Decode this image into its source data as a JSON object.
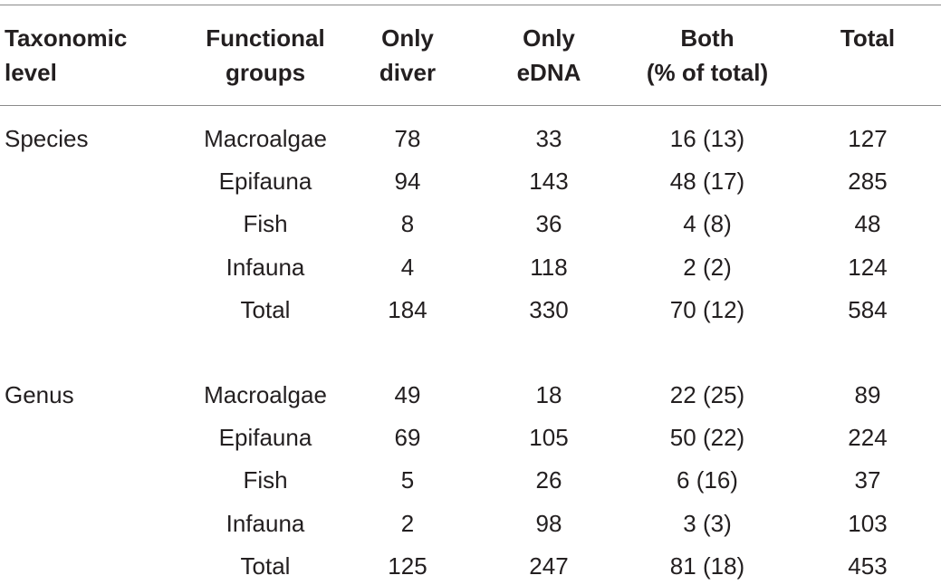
{
  "table": {
    "header": [
      [
        "Taxonomic",
        "level"
      ],
      [
        "Functional",
        "groups"
      ],
      [
        "Only",
        "diver"
      ],
      [
        "Only",
        "eDNA"
      ],
      [
        "Both",
        "(% of total)"
      ],
      [
        "Total"
      ]
    ],
    "groups": [
      {
        "level": "Species",
        "rows": [
          [
            "Macroalgae",
            78,
            33,
            "16 (13)",
            127
          ],
          [
            "Epifauna",
            94,
            143,
            "48 (17)",
            285
          ],
          [
            "Fish",
            8,
            36,
            "4 (8)",
            48
          ],
          [
            "Infauna",
            4,
            118,
            "2 (2)",
            124
          ],
          [
            "Total",
            184,
            330,
            "70 (12)",
            584
          ]
        ]
      },
      {
        "level": "Genus",
        "rows": [
          [
            "Macroalgae",
            49,
            18,
            "22 (25)",
            89
          ],
          [
            "Epifauna",
            69,
            105,
            "50 (22)",
            224
          ],
          [
            "Fish",
            5,
            26,
            "6 (16)",
            37
          ],
          [
            "Infauna",
            2,
            98,
            "3 (3)",
            103
          ],
          [
            "Total",
            125,
            247,
            "81 (18)",
            453
          ]
        ]
      }
    ]
  }
}
